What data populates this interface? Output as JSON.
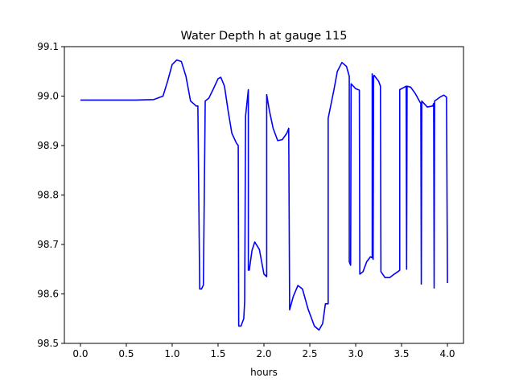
{
  "chart_data": {
    "type": "line",
    "title": "Water Depth h at gauge 115",
    "xlabel": "hours",
    "ylabel": "",
    "xlim": [
      -0.175,
      4.175
    ],
    "ylim": [
      98.5,
      99.1
    ],
    "xticks": [
      0.0,
      0.5,
      1.0,
      1.5,
      2.0,
      2.5,
      3.0,
      3.5,
      4.0
    ],
    "xtick_labels": [
      "0.0",
      "0.5",
      "1.0",
      "1.5",
      "2.0",
      "2.5",
      "3.0",
      "3.5",
      "4.0"
    ],
    "yticks": [
      98.5,
      98.6,
      98.7,
      98.8,
      98.9,
      99.0,
      99.1
    ],
    "ytick_labels": [
      "98.5",
      "98.6",
      "98.7",
      "98.8",
      "98.9",
      "99.0",
      "99.1"
    ],
    "grid": false,
    "series": [
      {
        "color": "#0000ff",
        "x": [
          0.0,
          0.3,
          0.6,
          0.8,
          0.9,
          0.95,
          1.0,
          1.05,
          1.1,
          1.15,
          1.2,
          1.25,
          1.26,
          1.28,
          1.3,
          1.32,
          1.34,
          1.36,
          1.4,
          1.45,
          1.5,
          1.53,
          1.57,
          1.61,
          1.65,
          1.7,
          1.72,
          1.725,
          1.75,
          1.78,
          1.79,
          1.8,
          1.83,
          1.83,
          1.84,
          1.87,
          1.9,
          1.95,
          2.0,
          2.03,
          2.03,
          2.06,
          2.1,
          2.15,
          2.2,
          2.25,
          2.27,
          2.28,
          2.32,
          2.37,
          2.42,
          2.48,
          2.55,
          2.6,
          2.64,
          2.67,
          2.7,
          2.7,
          2.76,
          2.8,
          2.85,
          2.9,
          2.93,
          2.93,
          2.94,
          2.945,
          2.95,
          3.0,
          3.04,
          3.045,
          3.08,
          3.12,
          3.16,
          3.18,
          3.18,
          3.19,
          3.195,
          3.2,
          3.25,
          3.27,
          3.275,
          3.32,
          3.37,
          3.42,
          3.46,
          3.48,
          3.48,
          3.52,
          3.55,
          3.555,
          3.56,
          3.6,
          3.65,
          3.7,
          3.71,
          3.715,
          3.72,
          3.78,
          3.84,
          3.85,
          3.855,
          3.86,
          3.92,
          3.96,
          3.99,
          4.0
        ],
        "y": [
          98.992,
          98.992,
          98.992,
          98.993,
          99.0,
          99.03,
          99.064,
          99.073,
          99.07,
          99.04,
          98.99,
          98.982,
          98.98,
          98.98,
          98.61,
          98.61,
          98.618,
          98.99,
          98.996,
          99.015,
          99.035,
          99.038,
          99.02,
          98.97,
          98.925,
          98.905,
          98.9,
          98.535,
          98.535,
          98.55,
          98.585,
          98.96,
          99.013,
          98.648,
          98.648,
          98.688,
          98.705,
          98.69,
          98.64,
          98.635,
          99.003,
          98.97,
          98.935,
          98.91,
          98.912,
          98.925,
          98.935,
          98.568,
          98.595,
          98.617,
          98.61,
          98.57,
          98.535,
          98.527,
          98.54,
          98.58,
          98.58,
          98.955,
          99.01,
          99.05,
          99.068,
          99.06,
          99.04,
          98.665,
          98.66,
          98.658,
          99.025,
          99.015,
          99.012,
          98.64,
          98.645,
          98.665,
          98.675,
          98.673,
          99.045,
          98.67,
          99.04,
          99.042,
          99.03,
          99.02,
          98.645,
          98.633,
          98.633,
          98.64,
          98.645,
          98.648,
          99.013,
          99.017,
          99.02,
          98.65,
          99.02,
          99.018,
          99.005,
          98.988,
          98.985,
          98.62,
          98.99,
          98.978,
          98.98,
          98.985,
          98.612,
          98.99,
          98.998,
          99.002,
          98.998,
          98.622
        ]
      }
    ]
  }
}
